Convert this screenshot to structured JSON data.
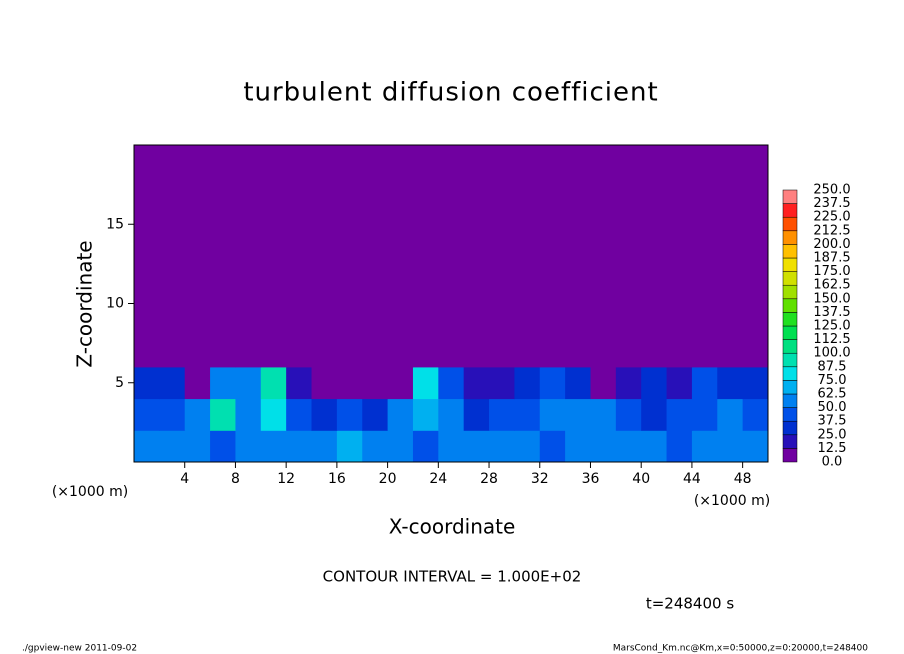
{
  "chart_data": {
    "type": "heatmap",
    "title": "turbulent diffusion coefficient",
    "x_label": "X-coordinate",
    "y_label": "Z-coordinate",
    "x_unit_label": "(×1000 m)",
    "y_unit_label": "(×1000 m)",
    "contour_note": "CONTOUR INTERVAL = 1.000E+02",
    "time_label": "t=248400 s",
    "footer_left": "./gpview-new  2011-09-02",
    "footer_right": "MarsCond_Km.nc@Km,x=0:50000,z=0:20000,t=248400",
    "xlim": [
      0,
      50
    ],
    "ylim": [
      0,
      20
    ],
    "xticks": [
      4,
      8,
      12,
      16,
      20,
      24,
      28,
      32,
      36,
      40,
      44,
      48
    ],
    "yticks": [
      5,
      10,
      15
    ],
    "x_edges": [
      0,
      2,
      4,
      6,
      8,
      10,
      12,
      14,
      16,
      18,
      20,
      22,
      24,
      26,
      28,
      30,
      32,
      34,
      36,
      38,
      40,
      42,
      44,
      46,
      48,
      50
    ],
    "z_edges": [
      0,
      2,
      4,
      6,
      20
    ],
    "values": [
      [
        55,
        60,
        50,
        45,
        55,
        60,
        50,
        55,
        65,
        60,
        50,
        45,
        55,
        50,
        60,
        55,
        45,
        50,
        55,
        60,
        50,
        45,
        55,
        60,
        50
      ],
      [
        45,
        40,
        50,
        90,
        55,
        75,
        40,
        35,
        40,
        30,
        50,
        70,
        50,
        35,
        40,
        45,
        55,
        60,
        50,
        45,
        35,
        40,
        45,
        50,
        40
      ],
      [
        30,
        35,
        10,
        60,
        50,
        95,
        20,
        5,
        5,
        5,
        10,
        80,
        40,
        15,
        15,
        25,
        40,
        35,
        10,
        15,
        30,
        20,
        45,
        35,
        25
      ],
      [
        0,
        0,
        0,
        0,
        0,
        0,
        0,
        0,
        0,
        0,
        0,
        0,
        0,
        0,
        0,
        0,
        0,
        0,
        0,
        0,
        0,
        0,
        0,
        0,
        0
      ]
    ],
    "colorbar": {
      "levels": [
        {
          "value": 0,
          "label": "0.0"
        },
        {
          "value": 12.5,
          "label": "12.5"
        },
        {
          "value": 25,
          "label": "25.0"
        },
        {
          "value": 37.5,
          "label": "37.5"
        },
        {
          "value": 50,
          "label": "50.0"
        },
        {
          "value": 62.5,
          "label": "62.5"
        },
        {
          "value": 75,
          "label": "75.0"
        },
        {
          "value": 87.5,
          "label": "87.5"
        },
        {
          "value": 100,
          "label": "100.0"
        },
        {
          "value": 112.5,
          "label": "112.5"
        },
        {
          "value": 125,
          "label": "125.0"
        },
        {
          "value": 137.5,
          "label": "137.5"
        },
        {
          "value": 150,
          "label": "150.0"
        },
        {
          "value": 162.5,
          "label": "162.5"
        },
        {
          "value": 175,
          "label": "175.0"
        },
        {
          "value": 187.5,
          "label": "187.5"
        },
        {
          "value": 200,
          "label": "200.0"
        },
        {
          "value": 212.5,
          "label": "212.5"
        },
        {
          "value": 225,
          "label": "225.0"
        },
        {
          "value": 237.5,
          "label": "237.5"
        },
        {
          "value": 250,
          "label": "250.0"
        }
      ],
      "colors": [
        "#7000a0",
        "#2810b8",
        "#0030d0",
        "#0050e8",
        "#0080f0",
        "#00b0f0",
        "#00e0e8",
        "#00e0b0",
        "#00e080",
        "#00e050",
        "#20e020",
        "#60e000",
        "#a0e000",
        "#d0e000",
        "#f0e000",
        "#ffc000",
        "#ff9000",
        "#ff5000",
        "#ff2020",
        "#ff8080"
      ]
    }
  }
}
